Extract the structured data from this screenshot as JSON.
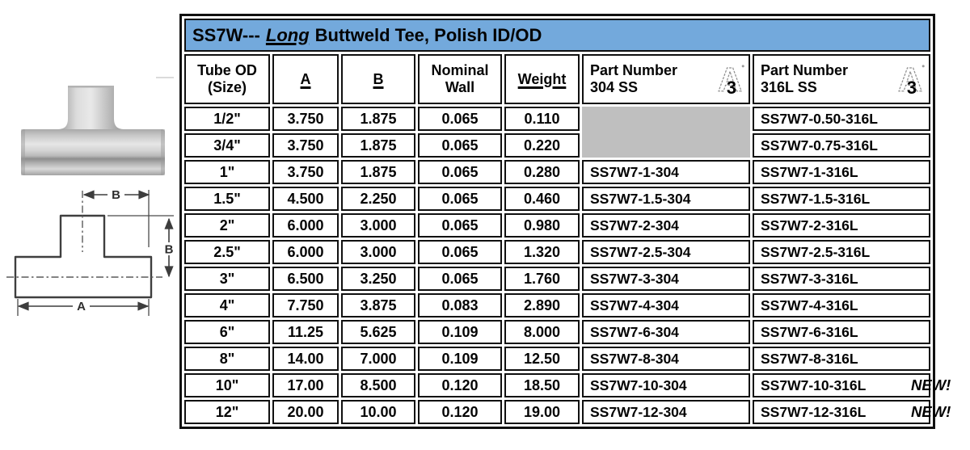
{
  "title": {
    "code": "SS7W---",
    "emphasis": "Long",
    "rest": "Buttweld Tee, Polish ID/OD"
  },
  "columns": {
    "size_l1": "Tube OD",
    "size_l2": "(Size)",
    "a": "A",
    "b": "B",
    "wall_l1": "Nominal",
    "wall_l2": "Wall",
    "weight": "Weight",
    "pn304_l1": "Part Number",
    "pn304_l2": "304 SS",
    "pn316_l1": "Part Number",
    "pn316_l2": "316L SS"
  },
  "badge": {
    "letter": "A",
    "digit": "3"
  },
  "new_label": "NEW!",
  "diagram": {
    "dim_b_top": "B",
    "dim_b_right": "B",
    "dim_a": "A"
  },
  "colors": {
    "header_blue": "#73a9dc",
    "gray_cell": "#bfbfbf",
    "border": "#101010"
  },
  "rows": [
    {
      "size": "1/2\"",
      "a": "3.750",
      "b": "1.875",
      "wall": "0.065",
      "weight": "0.110",
      "pn304": "",
      "pn316": "SS7W7-0.50-316L",
      "new": false
    },
    {
      "size": "3/4\"",
      "a": "3.750",
      "b": "1.875",
      "wall": "0.065",
      "weight": "0.220",
      "pn304": "",
      "pn316": "SS7W7-0.75-316L",
      "new": false
    },
    {
      "size": "1\"",
      "a": "3.750",
      "b": "1.875",
      "wall": "0.065",
      "weight": "0.280",
      "pn304": "SS7W7-1-304",
      "pn316": "SS7W7-1-316L",
      "new": false
    },
    {
      "size": "1.5\"",
      "a": "4.500",
      "b": "2.250",
      "wall": "0.065",
      "weight": "0.460",
      "pn304": "SS7W7-1.5-304",
      "pn316": "SS7W7-1.5-316L",
      "new": false
    },
    {
      "size": "2\"",
      "a": "6.000",
      "b": "3.000",
      "wall": "0.065",
      "weight": "0.980",
      "pn304": "SS7W7-2-304",
      "pn316": "SS7W7-2-316L",
      "new": false
    },
    {
      "size": "2.5\"",
      "a": "6.000",
      "b": "3.000",
      "wall": "0.065",
      "weight": "1.320",
      "pn304": "SS7W7-2.5-304",
      "pn316": "SS7W7-2.5-316L",
      "new": false
    },
    {
      "size": "3\"",
      "a": "6.500",
      "b": "3.250",
      "wall": "0.065",
      "weight": "1.760",
      "pn304": "SS7W7-3-304",
      "pn316": "SS7W7-3-316L",
      "new": false
    },
    {
      "size": "4\"",
      "a": "7.750",
      "b": "3.875",
      "wall": "0.083",
      "weight": "2.890",
      "pn304": "SS7W7-4-304",
      "pn316": "SS7W7-4-316L",
      "new": false
    },
    {
      "size": "6\"",
      "a": "11.25",
      "b": "5.625",
      "wall": "0.109",
      "weight": "8.000",
      "pn304": "SS7W7-6-304",
      "pn316": "SS7W7-6-316L",
      "new": false
    },
    {
      "size": "8\"",
      "a": "14.00",
      "b": "7.000",
      "wall": "0.109",
      "weight": "12.50",
      "pn304": "SS7W7-8-304",
      "pn316": "SS7W7-8-316L",
      "new": false
    },
    {
      "size": "10\"",
      "a": "17.00",
      "b": "8.500",
      "wall": "0.120",
      "weight": "18.50",
      "pn304": "SS7W7-10-304",
      "pn316": "SS7W7-10-316L",
      "new": true
    },
    {
      "size": "12\"",
      "a": "20.00",
      "b": "10.00",
      "wall": "0.120",
      "weight": "19.00",
      "pn304": "SS7W7-12-304",
      "pn316": "SS7W7-12-316L",
      "new": true
    }
  ]
}
